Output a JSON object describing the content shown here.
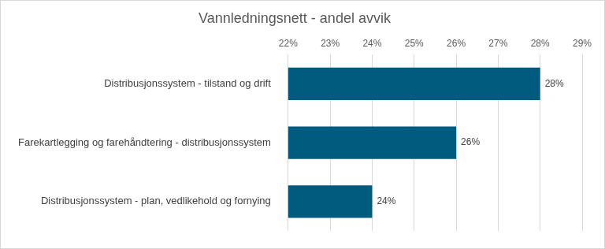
{
  "chart_data": {
    "type": "bar",
    "title": "Vannledningsnett - andel avvik",
    "orientation": "horizontal",
    "categories": [
      "Distribusjonssystem - tilstand og drift",
      "Farekartlegging og farehåndtering - distribusjonssystem",
      "Distribusjonssystem - plan, vedlikehold og fornying"
    ],
    "values": [
      28,
      26,
      24
    ],
    "value_labels": [
      "28%",
      "26%",
      "24%"
    ],
    "data_labels": true,
    "color": "#005b7f",
    "xlim": [
      22,
      29
    ],
    "xticks": [
      {
        "value": 22,
        "label": "22%"
      },
      {
        "value": 23,
        "label": "23%"
      },
      {
        "value": 24,
        "label": "24%"
      },
      {
        "value": 25,
        "label": "25%"
      },
      {
        "value": 26,
        "label": "26%"
      },
      {
        "value": 27,
        "label": "27%"
      },
      {
        "value": 28,
        "label": "28%"
      },
      {
        "value": 29,
        "label": "29%"
      }
    ],
    "grid": true
  }
}
